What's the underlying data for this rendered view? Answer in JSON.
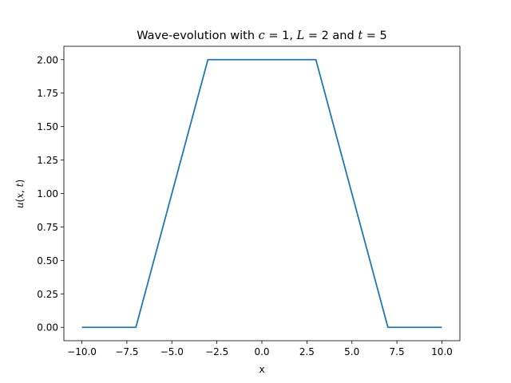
{
  "chart_data": {
    "type": "line",
    "title": {
      "prefix": "Wave-evolution with ",
      "v1": "c",
      "eq1": " = 1, ",
      "v2": "L",
      "eq2": " = 2 and ",
      "v3": "t",
      "eq3": " = 5"
    },
    "xlabel": "x",
    "ylabel": {
      "u": "u",
      "open": "(",
      "x": "x",
      "comma": ", ",
      "t": "t",
      "close": ")"
    },
    "xlim": [
      -11,
      11
    ],
    "ylim": [
      -0.1,
      2.1
    ],
    "xticks": [
      -10,
      -7.5,
      -5,
      -2.5,
      0,
      2.5,
      5,
      7.5,
      10
    ],
    "xtick_labels": [
      "−10.0",
      "−7.5",
      "−5.0",
      "−2.5",
      "0.0",
      "2.5",
      "5.0",
      "7.5",
      "10.0"
    ],
    "yticks": [
      0,
      0.25,
      0.5,
      0.75,
      1.0,
      1.25,
      1.5,
      1.75,
      2.0
    ],
    "ytick_labels": [
      "0.00",
      "0.25",
      "0.50",
      "0.75",
      "1.00",
      "1.25",
      "1.50",
      "1.75",
      "2.00"
    ],
    "grid": false,
    "series": [
      {
        "color": "#1f77b4",
        "x": [
          -10,
          -7,
          -3,
          3,
          7,
          10
        ],
        "y": [
          0,
          0,
          2,
          2,
          0,
          0
        ]
      }
    ]
  }
}
